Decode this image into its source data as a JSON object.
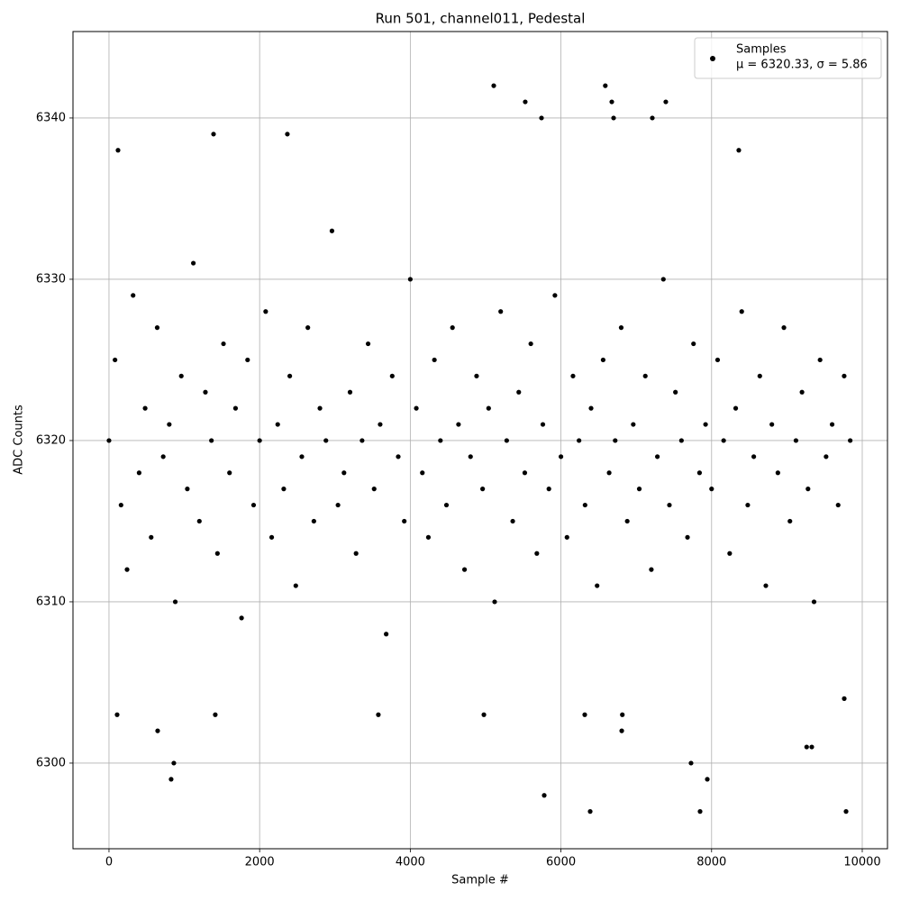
{
  "chart_data": {
    "type": "scatter",
    "title": "Run 501, channel011, Pedestal",
    "x_label": "Sample #",
    "y_label": "ADC Counts",
    "legend_note": "μ = 6320.33, σ = 5.86",
    "legend_position": "upper right",
    "grid": true,
    "xlim": [
      -478,
      10335
    ],
    "ylim": [
      6294.69,
      6345.36
    ],
    "xticks": [
      0,
      2000,
      4000,
      6000,
      8000,
      10000
    ],
    "yticks": [
      6300,
      6310,
      6320,
      6330,
      6340
    ],
    "x": [
      0,
      80,
      160,
      240,
      320,
      400,
      480,
      560,
      640,
      720,
      800,
      880,
      960,
      1040,
      1120,
      1200,
      1280,
      1360,
      1440,
      1520,
      1600,
      1680,
      1760,
      1840,
      1920,
      2000,
      2080,
      2160,
      2240,
      2320,
      2400,
      2480,
      2560,
      2640,
      2720,
      2800,
      2880,
      2960,
      3040,
      3120,
      3200,
      3280,
      3360,
      3440,
      3520,
      3600,
      3680,
      3760,
      3840,
      3920,
      4000,
      4080,
      4160,
      4240,
      4320,
      4400,
      4480,
      4560,
      4640,
      4720,
      4800,
      4880,
      4960,
      5040,
      5120,
      5200,
      5280,
      5360,
      5440,
      5520,
      5600,
      5680,
      5760,
      5840,
      5920,
      6000,
      6080,
      6160,
      6240,
      6320,
      6400,
      6480,
      6560,
      6640,
      6720,
      6800,
      6880,
      6960,
      7040,
      7120,
      7200,
      7280,
      7360,
      7440,
      7520,
      7600,
      7680,
      7760,
      7840,
      7920,
      8000,
      8080,
      8160,
      8240,
      8320,
      8400,
      8480,
      8560,
      8640,
      8720,
      8800,
      8880,
      8960,
      9040,
      9120,
      9200,
      9280,
      9360,
      9440,
      9520,
      9600,
      9680,
      9760,
      9840,
      108,
      646,
      825,
      861,
      120,
      1388,
      2368,
      5108,
      5526,
      5742,
      5778,
      6388,
      6589,
      6675,
      6699,
      7213,
      7392,
      7727,
      7847,
      7943,
      9785,
      9262,
      9330,
      8361,
      6807,
      6815,
      6316,
      4977,
      3576,
      1411,
      9761
    ],
    "series": [
      {
        "name": "Samples",
        "color": "#000000",
        "values": [
          6320,
          6325,
          6316,
          6312,
          6329,
          6318,
          6322,
          6314,
          6327,
          6319,
          6321,
          6310,
          6324,
          6317,
          6331,
          6315,
          6323,
          6320,
          6313,
          6326,
          6318,
          6322,
          6309,
          6325,
          6316,
          6320,
          6328,
          6314,
          6321,
          6317,
          6324,
          6311,
          6319,
          6327,
          6315,
          6322,
          6320,
          6333,
          6316,
          6318,
          6323,
          6313,
          6320,
          6326,
          6317,
          6321,
          6308,
          6324,
          6319,
          6315,
          6330,
          6322,
          6318,
          6314,
          6325,
          6320,
          6316,
          6327,
          6321,
          6312,
          6319,
          6324,
          6317,
          6322,
          6310,
          6328,
          6320,
          6315,
          6323,
          6318,
          6326,
          6313,
          6321,
          6317,
          6329,
          6319,
          6314,
          6324,
          6320,
          6316,
          6322,
          6311,
          6325,
          6318,
          6320,
          6327,
          6315,
          6321,
          6317,
          6324,
          6312,
          6319,
          6330,
          6316,
          6323,
          6320,
          6314,
          6326,
          6318,
          6321,
          6317,
          6325,
          6320,
          6313,
          6322,
          6328,
          6316,
          6319,
          6324,
          6311,
          6321,
          6318,
          6327,
          6315,
          6320,
          6323,
          6317,
          6310,
          6325,
          6319,
          6321,
          6316,
          6324,
          6320,
          6303,
          6302,
          6299,
          6300,
          6338,
          6339,
          6339,
          6342,
          6341,
          6340,
          6298,
          6297,
          6342,
          6341,
          6340,
          6340,
          6341,
          6300,
          6297,
          6299,
          6297,
          6301,
          6301,
          6338,
          6302,
          6303,
          6303,
          6303,
          6303,
          6303,
          6304
        ]
      }
    ]
  }
}
